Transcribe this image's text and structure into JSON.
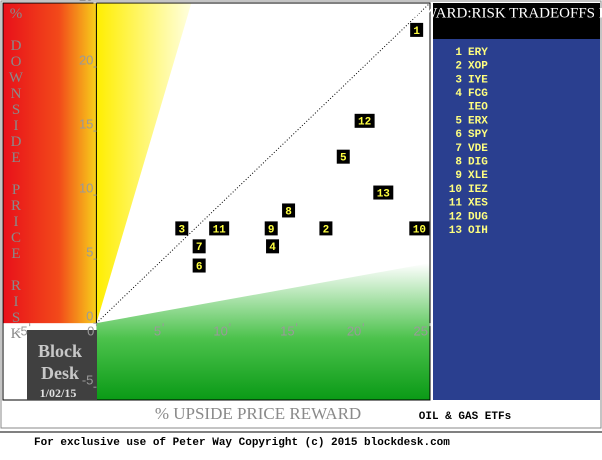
{
  "chart_data": {
    "type": "scatter",
    "title": "REWARD:RISK TRADEOFFS FOR",
    "subtitle": "OIL & GAS ETFs",
    "x_label": "% UPSIDE PRICE REWARD",
    "y_label": "% DOWNSIDE PRICE RISK",
    "logo": [
      "Block",
      "Desk"
    ],
    "date": "1/02/15",
    "footer": "For exclusive use of Peter Way Copyright (c) 2015 blockdesk.com",
    "xlim": [
      -7,
      25
    ],
    "ylim": [
      -6,
      25
    ],
    "xticks": [
      -5,
      0,
      5,
      10,
      15,
      20,
      25
    ],
    "yticks": [
      -5,
      0,
      5,
      10,
      15,
      20,
      25
    ],
    "series": [
      {
        "labels": [
          "1",
          "12",
          "5",
          "13",
          "8",
          "3",
          "11",
          "9",
          "2",
          "10",
          "7",
          "4",
          "6"
        ],
        "x": [
          24.0,
          20.1,
          18.5,
          21.5,
          14.4,
          6.4,
          9.2,
          13.1,
          17.2,
          24.2,
          7.7,
          13.2,
          7.7
        ],
        "values": [
          22.9,
          15.8,
          13.0,
          10.2,
          8.8,
          7.4,
          7.4,
          7.4,
          7.4,
          7.4,
          6.0,
          6.0,
          4.5
        ],
        "color": "#000000"
      }
    ],
    "legend": [
      {
        "rank": "1",
        "name": "ERY"
      },
      {
        "rank": "2",
        "name": "XOP"
      },
      {
        "rank": "3",
        "name": "IYE"
      },
      {
        "rank": "4",
        "name": "FCG"
      },
      {
        "rank": null,
        "name": "IEO"
      },
      {
        "rank": "5",
        "name": "ERX"
      },
      {
        "rank": "6",
        "name": "SPY"
      },
      {
        "rank": "7",
        "name": "VDE"
      },
      {
        "rank": "8",
        "name": "DIG"
      },
      {
        "rank": "9",
        "name": "XLE"
      },
      {
        "rank": "10",
        "name": "IEZ"
      },
      {
        "rank": "11",
        "name": "XES"
      },
      {
        "rank": "12",
        "name": "DUG"
      },
      {
        "rank": "13",
        "name": "OIH"
      }
    ]
  }
}
